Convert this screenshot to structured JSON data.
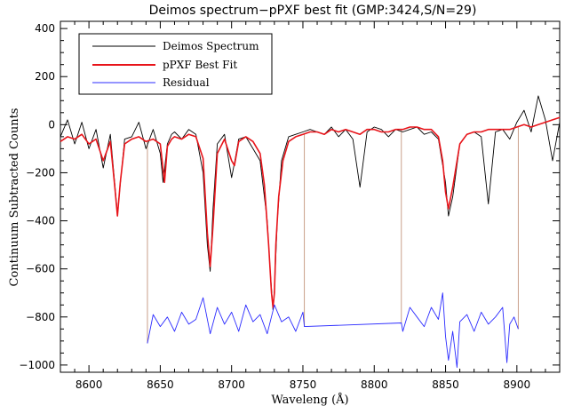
{
  "chart_data": {
    "type": "line",
    "title": "Deimos spectrum−pPXF best fit (GMP:3424,S/N=29)",
    "xlabel": "Waveleng (Å)",
    "ylabel": "Continuum Subtracted Counts",
    "xlim": [
      8580,
      8930
    ],
    "ylim": [
      -1030,
      430
    ],
    "x_ticks": [
      8600,
      8650,
      8700,
      8750,
      8800,
      8850,
      8900
    ],
    "y_ticks": [
      400,
      200,
      0,
      -200,
      -400,
      -600,
      -800,
      -1000
    ],
    "x_tick_labels": [
      "8600",
      "8650",
      "8700",
      "8750",
      "8800",
      "8850",
      "8900"
    ],
    "y_tick_labels": [
      "400",
      "200",
      "0",
      "−200",
      "−400",
      "−600",
      "−800",
      "−1000"
    ],
    "legend_position": "top-left",
    "grid": false,
    "series": [
      {
        "name": "Deimos Spectrum",
        "color": "#000000",
        "x": [
          8580,
          8585,
          8590,
          8595,
          8600,
          8605,
          8610,
          8615,
          8620,
          8625,
          8630,
          8635,
          8640,
          8645,
          8650,
          8652,
          8655,
          8658,
          8660,
          8665,
          8670,
          8675,
          8680,
          8683,
          8685,
          8687,
          8690,
          8695,
          8700,
          8702,
          8705,
          8710,
          8715,
          8720,
          8725,
          8727,
          8729,
          8730,
          8732,
          8735,
          8740,
          8745,
          8750,
          8755,
          8760,
          8765,
          8770,
          8775,
          8780,
          8785,
          8790,
          8795,
          8800,
          8805,
          8810,
          8815,
          8820,
          8825,
          8830,
          8835,
          8840,
          8845,
          8850,
          8852,
          8855,
          8860,
          8865,
          8870,
          8875,
          8880,
          8885,
          8890,
          8895,
          8900,
          8905,
          8910,
          8915,
          8920,
          8925,
          8930
        ],
        "y": [
          -50,
          20,
          -80,
          10,
          -100,
          -20,
          -180,
          -40,
          -370,
          -60,
          -50,
          10,
          -100,
          -20,
          -120,
          -240,
          -80,
          -40,
          -30,
          -60,
          -20,
          -40,
          -200,
          -500,
          -610,
          -350,
          -80,
          -40,
          -220,
          -160,
          -60,
          -50,
          -100,
          -150,
          -400,
          -600,
          -770,
          -690,
          -400,
          -150,
          -50,
          -40,
          -30,
          -20,
          -30,
          -40,
          -10,
          -50,
          -20,
          -60,
          -260,
          -30,
          -10,
          -20,
          -50,
          -20,
          -30,
          -20,
          -10,
          -40,
          -30,
          -60,
          -240,
          -380,
          -300,
          -80,
          -40,
          -30,
          -50,
          -330,
          -30,
          -20,
          -60,
          10,
          60,
          -30,
          120,
          20,
          -150,
          10
        ]
      },
      {
        "name": "pPXF Best Fit",
        "color": "#e8141a",
        "x": [
          8580,
          8585,
          8590,
          8595,
          8600,
          8605,
          8610,
          8615,
          8618,
          8620,
          8622,
          8625,
          8630,
          8635,
          8640,
          8645,
          8650,
          8653,
          8655,
          8658,
          8660,
          8665,
          8670,
          8675,
          8680,
          8683,
          8685,
          8687,
          8690,
          8695,
          8700,
          8702,
          8705,
          8710,
          8715,
          8720,
          8723,
          8726,
          8728,
          8729,
          8730,
          8731,
          8733,
          8736,
          8740,
          8745,
          8750,
          8755,
          8760,
          8765,
          8770,
          8775,
          8780,
          8785,
          8790,
          8795,
          8800,
          8805,
          8810,
          8815,
          8820,
          8825,
          8830,
          8835,
          8840,
          8845,
          8848,
          8850,
          8852,
          8855,
          8860,
          8865,
          8870,
          8875,
          8880,
          8885,
          8890,
          8895,
          8900,
          8905,
          8910,
          8915,
          8920,
          8925,
          8930
        ],
        "y": [
          -70,
          -50,
          -60,
          -40,
          -80,
          -60,
          -150,
          -70,
          -250,
          -380,
          -240,
          -80,
          -60,
          -50,
          -70,
          -60,
          -80,
          -240,
          -90,
          -60,
          -50,
          -60,
          -40,
          -50,
          -140,
          -450,
          -590,
          -420,
          -120,
          -60,
          -150,
          -170,
          -70,
          -50,
          -70,
          -120,
          -250,
          -500,
          -700,
          -760,
          -700,
          -500,
          -300,
          -150,
          -70,
          -50,
          -40,
          -30,
          -30,
          -40,
          -20,
          -30,
          -20,
          -30,
          -40,
          -20,
          -20,
          -30,
          -30,
          -20,
          -20,
          -10,
          -10,
          -20,
          -20,
          -50,
          -150,
          -280,
          -350,
          -260,
          -80,
          -40,
          -30,
          -30,
          -20,
          -20,
          -20,
          -20,
          -10,
          0,
          -10,
          0,
          10,
          20,
          30
        ]
      },
      {
        "name": "Residual",
        "color": "#2b2bff",
        "x": [
          8641,
          8645,
          8650,
          8655,
          8660,
          8665,
          8670,
          8675,
          8680,
          8685,
          8690,
          8695,
          8700,
          8705,
          8710,
          8715,
          8720,
          8725,
          8730,
          8735,
          8740,
          8745,
          8750,
          8751,
          8819,
          8820,
          8825,
          8830,
          8835,
          8840,
          8845,
          8848,
          8850,
          8852,
          8855,
          8858,
          8860,
          8865,
          8870,
          8875,
          8880,
          8885,
          8890,
          8893,
          8895,
          8898,
          8901
        ],
        "y": [
          -910,
          -790,
          -840,
          -800,
          -860,
          -780,
          -830,
          -810,
          -720,
          -870,
          -760,
          -830,
          -780,
          -860,
          -750,
          -820,
          -790,
          -870,
          -750,
          -820,
          -800,
          -860,
          -780,
          -840,
          -825,
          -860,
          -760,
          -800,
          -840,
          -760,
          -810,
          -700,
          -880,
          -980,
          -860,
          -1010,
          -820,
          -790,
          -860,
          -780,
          -830,
          -800,
          -760,
          -990,
          -830,
          -800,
          -850
        ]
      }
    ],
    "residual_ranges": [
      [
        8641,
        8751
      ],
      [
        8819,
        8901
      ]
    ]
  }
}
